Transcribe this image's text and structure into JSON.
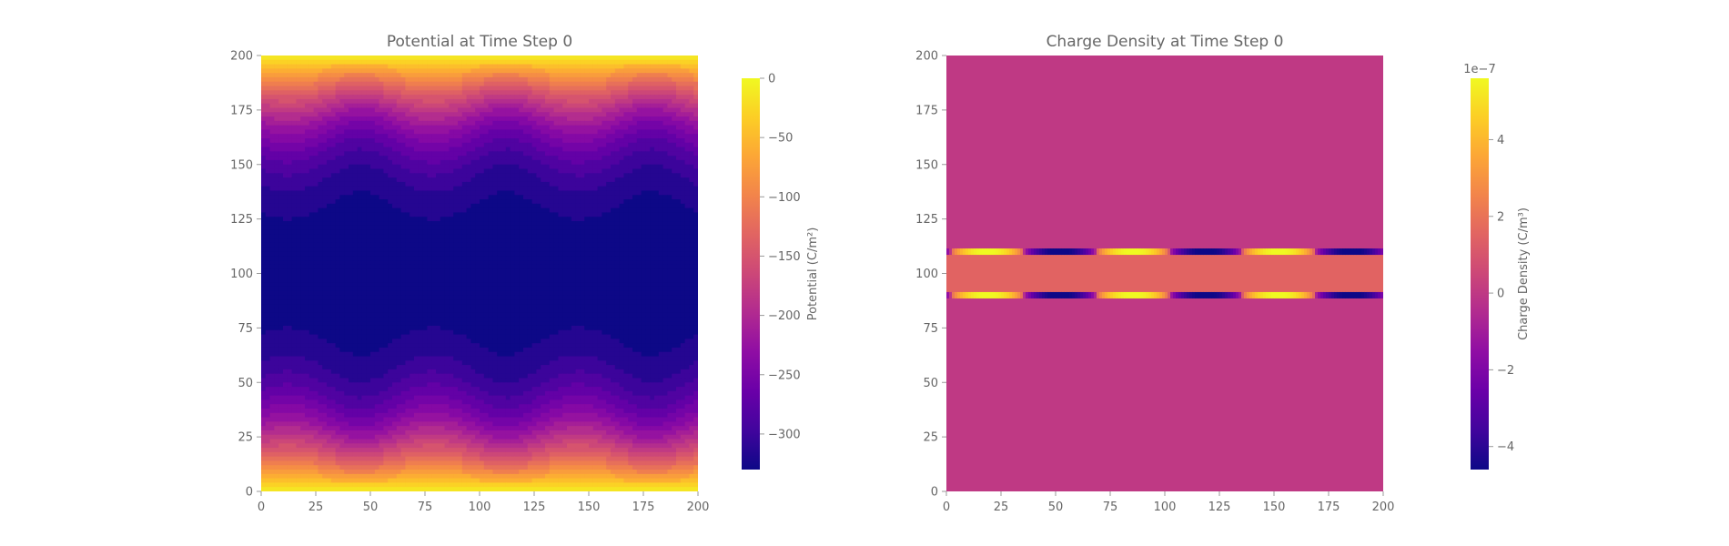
{
  "chart_data": [
    {
      "type": "heatmap",
      "title": "Potential at Time Step 0",
      "xlim": [
        0,
        200
      ],
      "ylim": [
        0,
        200
      ],
      "xticks": [
        "0",
        "25",
        "50",
        "75",
        "100",
        "125",
        "150",
        "175",
        "200"
      ],
      "yticks": [
        "0",
        "25",
        "50",
        "75",
        "100",
        "125",
        "150",
        "175",
        "200"
      ],
      "colormap": "plasma",
      "colorbar": {
        "label": "Potential (C/m²)",
        "range": [
          -330,
          0
        ],
        "ticks": [
          "0",
          "−50",
          "−100",
          "−150",
          "−200",
          "−250",
          "−300"
        ],
        "tick_values": [
          0,
          -50,
          -100,
          -150,
          -200,
          -250,
          -300
        ]
      },
      "field": {
        "description_values": "potential is 0 at y=0 and y=200, minimum about -330 near y=100 with a periodic modulation along x",
        "min": -330,
        "max": 0,
        "center_y": 100,
        "modulation_period_x": 66.7
      }
    },
    {
      "type": "heatmap",
      "title": "Charge Density at Time Step 0",
      "xlim": [
        0,
        200
      ],
      "ylim": [
        0,
        200
      ],
      "xticks": [
        "0",
        "25",
        "50",
        "75",
        "100",
        "125",
        "150",
        "175",
        "200"
      ],
      "yticks": [
        "0",
        "25",
        "50",
        "75",
        "100",
        "125",
        "150",
        "175",
        "200"
      ],
      "colormap": "plasma",
      "colorbar": {
        "label": "Charge Density (C/m³)",
        "offset_text": "1e−7",
        "range": [
          -4.6,
          5.6
        ],
        "ticks": [
          "4",
          "2",
          "0",
          "−2",
          "−4"
        ],
        "tick_values": [
          4,
          2,
          0,
          -2,
          -4
        ]
      },
      "field": {
        "background_value": 0,
        "band_value": 1.5,
        "band_y": [
          90,
          110
        ],
        "edge_lines_y": [
          90,
          110
        ],
        "edge_amplitude": 5.5,
        "edge_period_x": 66.7
      }
    }
  ]
}
